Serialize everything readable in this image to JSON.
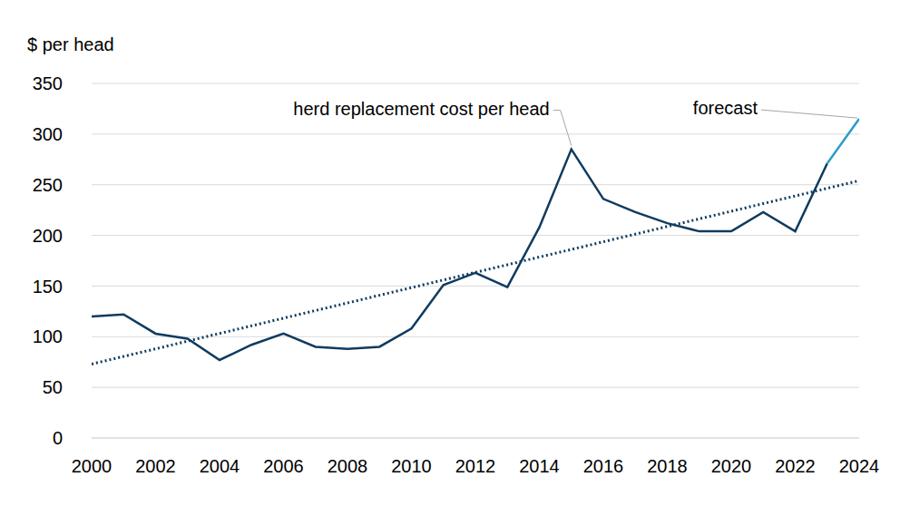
{
  "chart_data": {
    "type": "line",
    "ylabel": "$ per head",
    "x": [
      2000,
      2001,
      2002,
      2003,
      2004,
      2005,
      2006,
      2007,
      2008,
      2009,
      2010,
      2011,
      2012,
      2013,
      2014,
      2015,
      2016,
      2017,
      2018,
      2019,
      2020,
      2021,
      2022,
      2023,
      2024
    ],
    "series": [
      {
        "name": "herd replacement cost per head",
        "color": "#0f3b5f",
        "values": [
          120,
          122,
          103,
          98,
          77,
          92,
          103,
          90,
          88,
          90,
          108,
          151,
          163,
          149,
          208,
          285,
          236,
          223,
          212,
          204,
          204,
          223,
          204,
          271,
          null
        ]
      },
      {
        "name": "forecast",
        "color": "#2e9dc8",
        "values": [
          null,
          null,
          null,
          null,
          null,
          null,
          null,
          null,
          null,
          null,
          null,
          null,
          null,
          null,
          null,
          null,
          null,
          null,
          null,
          null,
          null,
          null,
          null,
          271,
          315
        ]
      },
      {
        "color": "#0f3b5f",
        "line_style": "dotted",
        "values": [
          73,
          80.5,
          88,
          95.6,
          103.2,
          110.7,
          118.3,
          125.8,
          133.3,
          140.9,
          148.4,
          156,
          163.5,
          171,
          178.6,
          186.1,
          193.7,
          201.2,
          208.8,
          216.3,
          223.8,
          231.4,
          238.9,
          246.5,
          254
        ]
      }
    ],
    "xlim": [
      2000,
      2024
    ],
    "xticks": [
      2000,
      2002,
      2004,
      2006,
      2008,
      2010,
      2012,
      2014,
      2016,
      2018,
      2020,
      2022,
      2024
    ],
    "ylim": [
      0,
      350
    ],
    "yticks": [
      0,
      50,
      100,
      150,
      200,
      250,
      300,
      350
    ],
    "grid": true
  }
}
